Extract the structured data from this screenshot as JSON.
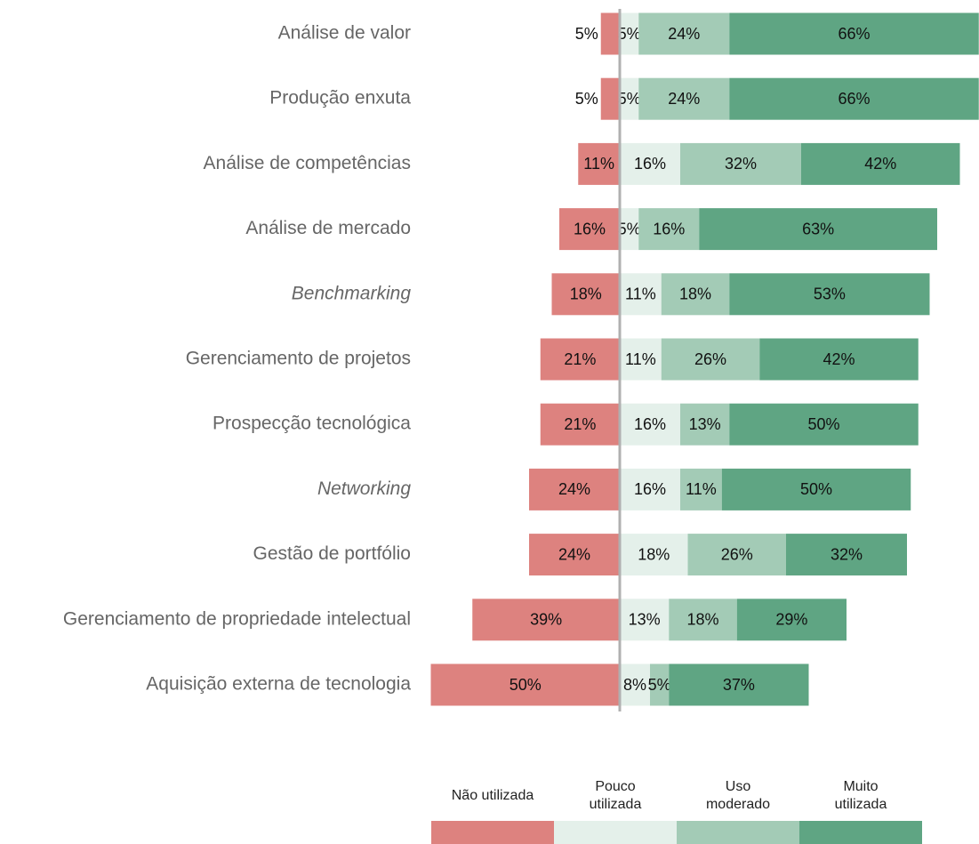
{
  "chart_data": {
    "type": "diverging_bar",
    "categories": [
      "Análise de valor",
      "Produção enxuta",
      "Análise de competências",
      "Análise de mercado",
      "Benchmarking",
      "Gerenciamento de projetos",
      "Prospecção tecnológica",
      "Networking",
      "Gestão de portfólio",
      "Gerenciamento de propriedade intelectual",
      "Aquisição externa de tecnologia"
    ],
    "category_style": [
      "normal",
      "normal",
      "normal",
      "normal",
      "italic",
      "normal",
      "normal",
      "italic",
      "normal",
      "normal",
      "normal"
    ],
    "series": [
      {
        "name": "Não utilizada",
        "color": "#dd827f",
        "side": "negative",
        "values": [
          5,
          5,
          11,
          16,
          18,
          21,
          21,
          24,
          24,
          39,
          50
        ],
        "value_labels": [
          "5%",
          "5%",
          "11%",
          "16%",
          "18%",
          "21%",
          "21%",
          "24%",
          "24%",
          "39%",
          "50%"
        ]
      },
      {
        "name": "Pouco utilizada",
        "color": "#e4f0ea",
        "side": "positive",
        "values": [
          5,
          5,
          16,
          5,
          11,
          11,
          16,
          16,
          18,
          13,
          8
        ],
        "value_labels": [
          "5%",
          "5%",
          "16%",
          "5%",
          "11%",
          "11%",
          "16%",
          "16%",
          "18%",
          "13%",
          "8%"
        ]
      },
      {
        "name": "Uso moderado",
        "color": "#a3cbb6",
        "side": "positive",
        "values": [
          24,
          24,
          32,
          16,
          18,
          26,
          13,
          11,
          26,
          18,
          5
        ],
        "value_labels": [
          "24%",
          "24%",
          "32%",
          "16%",
          "18%",
          "26%",
          "13%",
          "11%",
          "26%",
          "18%",
          "5%"
        ]
      },
      {
        "name": "Muito utilizada",
        "color": "#5fa583",
        "side": "positive",
        "values": [
          66,
          66,
          42,
          63,
          53,
          42,
          50,
          50,
          32,
          29,
          37
        ],
        "value_labels": [
          "66%",
          "66%",
          "42%",
          "63%",
          "53%",
          "42%",
          "50%",
          "50%",
          "32%",
          "29%",
          "37%"
        ]
      }
    ]
  }
}
